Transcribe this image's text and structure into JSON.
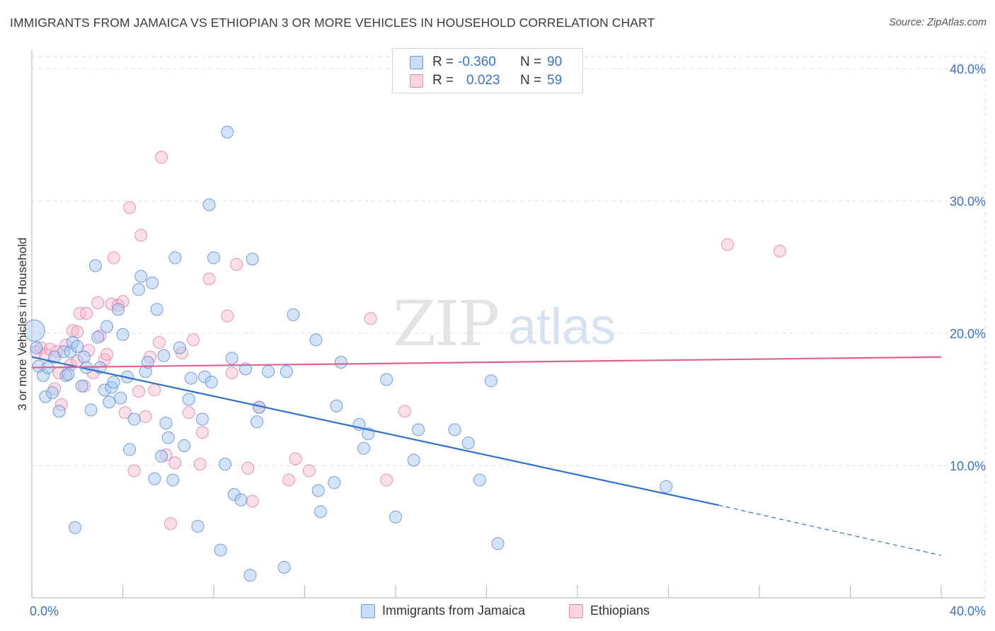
{
  "title": "IMMIGRANTS FROM JAMAICA VS ETHIOPIAN 3 OR MORE VEHICLES IN HOUSEHOLD CORRELATION CHART",
  "source": "Source: ZipAtlas.com",
  "watermark": {
    "zip": "ZIP",
    "atlas": "atlas"
  },
  "legend": {
    "rows": [
      {
        "r_label": "R =",
        "r_value": "-0.360",
        "n_label": "N =",
        "n_value": "90",
        "color": "#a9c8f2"
      },
      {
        "r_label": "R =",
        "r_value": "0.023",
        "n_label": "N =",
        "n_value": "59",
        "color": "#f6b8cc"
      }
    ]
  },
  "bottom_legend": [
    {
      "label": "Immigrants from Jamaica",
      "color": "#a9c8f2"
    },
    {
      "label": "Ethiopians",
      "color": "#f6b8cc"
    }
  ],
  "chart_data": {
    "type": "scatter",
    "title": "IMMIGRANTS FROM JAMAICA VS ETHIOPIAN 3 OR MORE VEHICLES IN HOUSEHOLD CORRELATION CHART",
    "xlabel": "",
    "ylabel": "3 or more Vehicles in Household",
    "xlim": [
      0,
      40
    ],
    "ylim": [
      0,
      40
    ],
    "x_tick_labels": [
      "0.0%",
      "40.0%"
    ],
    "y_tick_labels": [
      "10.0%",
      "20.0%",
      "30.0%",
      "40.0%"
    ],
    "y_ticks": [
      10,
      20,
      30,
      40
    ],
    "grid": true,
    "legend_position": "top-center",
    "colors": {
      "blue_fill": "#a9c8f2",
      "blue_stroke": "#5b8fd6",
      "blue_line": "#2f6fd0",
      "pink_fill": "#f6b8cc",
      "pink_stroke": "#e27ca0",
      "pink_line": "#e0608f",
      "axis_text": "#3a74c8"
    },
    "series": [
      {
        "name": "Immigrants from Jamaica",
        "color": "#a9c8f2",
        "trend": {
          "x_start": 0,
          "y_start": 18.2,
          "x_solid_end": 30.2,
          "y_solid_end": 7.0,
          "x_end": 40,
          "y_end": 3.2
        },
        "points": [
          [
            0.1,
            20.2
          ],
          [
            0.2,
            18.9
          ],
          [
            0.3,
            17.5
          ],
          [
            0.5,
            16.8
          ],
          [
            0.6,
            15.2
          ],
          [
            0.7,
            17.4
          ],
          [
            0.9,
            15.5
          ],
          [
            1.0,
            18.2
          ],
          [
            1.2,
            14.1
          ],
          [
            1.4,
            18.6
          ],
          [
            1.5,
            16.8
          ],
          [
            1.6,
            16.9
          ],
          [
            1.7,
            18.6
          ],
          [
            1.8,
            19.3
          ],
          [
            1.9,
            5.3
          ],
          [
            2.0,
            19.0
          ],
          [
            2.2,
            16.0
          ],
          [
            2.3,
            18.2
          ],
          [
            2.4,
            17.4
          ],
          [
            2.6,
            14.2
          ],
          [
            2.8,
            25.1
          ],
          [
            2.9,
            19.7
          ],
          [
            3.0,
            17.4
          ],
          [
            3.2,
            15.7
          ],
          [
            3.3,
            20.5
          ],
          [
            3.4,
            14.8
          ],
          [
            3.5,
            15.9
          ],
          [
            3.6,
            16.3
          ],
          [
            3.8,
            21.8
          ],
          [
            3.9,
            15.1
          ],
          [
            4.0,
            19.9
          ],
          [
            4.2,
            16.7
          ],
          [
            4.3,
            11.2
          ],
          [
            4.5,
            13.5
          ],
          [
            4.7,
            23.3
          ],
          [
            4.8,
            24.3
          ],
          [
            5.0,
            17.1
          ],
          [
            5.1,
            17.8
          ],
          [
            5.3,
            23.8
          ],
          [
            5.4,
            9.0
          ],
          [
            5.5,
            21.8
          ],
          [
            5.7,
            10.7
          ],
          [
            5.8,
            18.3
          ],
          [
            5.9,
            13.2
          ],
          [
            6.0,
            12.1
          ],
          [
            6.2,
            8.9
          ],
          [
            6.3,
            25.7
          ],
          [
            6.5,
            18.9
          ],
          [
            6.7,
            11.5
          ],
          [
            6.9,
            15.0
          ],
          [
            7.0,
            16.6
          ],
          [
            7.3,
            5.4
          ],
          [
            7.5,
            13.5
          ],
          [
            7.6,
            16.7
          ],
          [
            7.8,
            29.7
          ],
          [
            7.9,
            16.3
          ],
          [
            8.0,
            25.7
          ],
          [
            8.3,
            3.6
          ],
          [
            8.5,
            10.1
          ],
          [
            8.8,
            18.1
          ],
          [
            8.9,
            7.8
          ],
          [
            9.2,
            7.4
          ],
          [
            9.4,
            17.3
          ],
          [
            9.6,
            1.7
          ],
          [
            9.7,
            25.6
          ],
          [
            9.9,
            13.3
          ],
          [
            10.0,
            14.4
          ],
          [
            10.4,
            17.1
          ],
          [
            11.1,
            2.3
          ],
          [
            11.2,
            17.1
          ],
          [
            11.5,
            21.4
          ],
          [
            12.5,
            19.5
          ],
          [
            12.6,
            8.1
          ],
          [
            12.7,
            6.5
          ],
          [
            13.3,
            8.7
          ],
          [
            13.4,
            14.5
          ],
          [
            13.6,
            17.8
          ],
          [
            14.4,
            13.1
          ],
          [
            14.6,
            11.3
          ],
          [
            14.8,
            12.4
          ],
          [
            15.6,
            16.5
          ],
          [
            16.0,
            6.1
          ],
          [
            16.8,
            10.4
          ],
          [
            17.0,
            12.7
          ],
          [
            18.6,
            12.7
          ],
          [
            19.2,
            11.7
          ],
          [
            19.7,
            8.9
          ],
          [
            20.2,
            16.4
          ],
          [
            20.5,
            4.1
          ],
          [
            27.9,
            8.4
          ],
          [
            8.6,
            35.2
          ]
        ]
      },
      {
        "name": "Ethiopians",
        "color": "#f6b8cc",
        "trend": {
          "x_start": 0,
          "y_start": 17.4,
          "x_end": 40,
          "y_end": 18.2
        },
        "points": [
          [
            0.2,
            18.6
          ],
          [
            0.4,
            18.9
          ],
          [
            0.6,
            18.4
          ],
          [
            0.8,
            18.8
          ],
          [
            1.0,
            15.8
          ],
          [
            1.2,
            17.0
          ],
          [
            1.3,
            14.6
          ],
          [
            1.5,
            19.1
          ],
          [
            1.7,
            17.6
          ],
          [
            1.8,
            20.2
          ],
          [
            2.0,
            17.9
          ],
          [
            2.1,
            21.5
          ],
          [
            2.3,
            16.0
          ],
          [
            2.4,
            21.5
          ],
          [
            2.5,
            18.7
          ],
          [
            2.7,
            17.0
          ],
          [
            2.9,
            22.3
          ],
          [
            3.0,
            19.8
          ],
          [
            3.2,
            18.0
          ],
          [
            3.3,
            18.4
          ],
          [
            3.5,
            22.2
          ],
          [
            3.6,
            25.7
          ],
          [
            3.8,
            22.1
          ],
          [
            4.0,
            22.4
          ],
          [
            4.1,
            14.0
          ],
          [
            4.3,
            29.5
          ],
          [
            4.5,
            9.6
          ],
          [
            4.7,
            15.6
          ],
          [
            4.8,
            27.4
          ],
          [
            5.0,
            13.7
          ],
          [
            5.2,
            18.2
          ],
          [
            5.4,
            15.7
          ],
          [
            5.6,
            19.3
          ],
          [
            5.7,
            33.3
          ],
          [
            5.9,
            10.8
          ],
          [
            6.1,
            5.6
          ],
          [
            6.3,
            10.2
          ],
          [
            6.6,
            18.5
          ],
          [
            6.9,
            14.0
          ],
          [
            7.1,
            19.5
          ],
          [
            7.4,
            10.1
          ],
          [
            7.5,
            12.5
          ],
          [
            7.8,
            24.1
          ],
          [
            8.6,
            21.3
          ],
          [
            8.8,
            17.0
          ],
          [
            9.0,
            25.2
          ],
          [
            9.5,
            9.8
          ],
          [
            9.7,
            7.3
          ],
          [
            10.0,
            14.4
          ],
          [
            11.3,
            8.9
          ],
          [
            11.6,
            10.5
          ],
          [
            12.2,
            9.6
          ],
          [
            14.9,
            21.1
          ],
          [
            15.6,
            8.9
          ],
          [
            16.4,
            14.1
          ],
          [
            30.6,
            26.7
          ],
          [
            32.9,
            26.2
          ],
          [
            1.1,
            18.6
          ],
          [
            2.0,
            20.1
          ]
        ]
      }
    ]
  }
}
